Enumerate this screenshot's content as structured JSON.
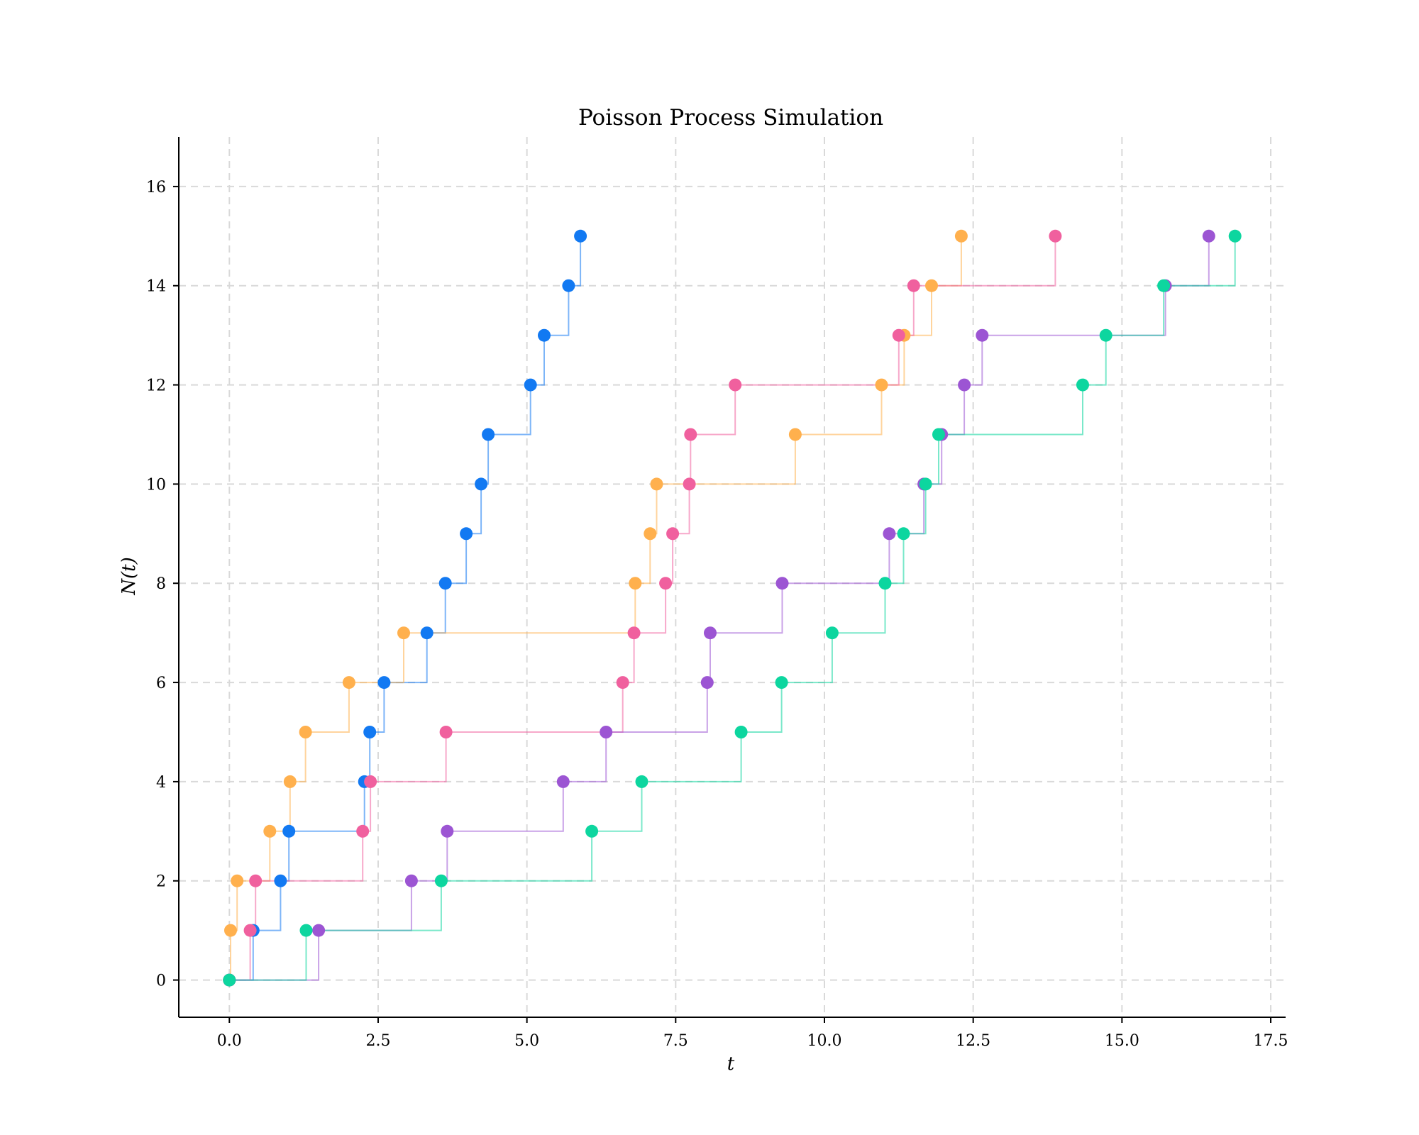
{
  "chart_data": {
    "type": "line",
    "title": "Poisson Process Simulation",
    "xlabel": "t",
    "ylabel": "N(t)",
    "xlim": [
      -0.85,
      17.75
    ],
    "ylim": [
      -0.75,
      17.0
    ],
    "x_ticks": [
      0.0,
      2.5,
      5.0,
      7.5,
      10.0,
      12.5,
      15.0,
      17.5
    ],
    "x_tick_labels": [
      "0.0",
      "2.5",
      "5.0",
      "7.5",
      "10.0",
      "12.5",
      "15.0",
      "17.5"
    ],
    "y_ticks": [
      0,
      2,
      4,
      6,
      8,
      10,
      12,
      14,
      16
    ],
    "y_tick_labels": [
      "0",
      "2",
      "4",
      "6",
      "8",
      "10",
      "12",
      "14",
      "16"
    ],
    "grid": true,
    "legend": "none",
    "series": [
      {
        "color": "#1279F2",
        "arrival_times": [
          0.0,
          0.4,
          0.86,
          1.0,
          2.27,
          2.36,
          2.6,
          3.32,
          3.63,
          3.98,
          4.23,
          4.35,
          5.06,
          5.29,
          5.7,
          5.9
        ],
        "counts": [
          0,
          1,
          2,
          3,
          4,
          5,
          6,
          7,
          8,
          9,
          10,
          11,
          12,
          13,
          14,
          15
        ]
      },
      {
        "color": "#FFB04D",
        "arrival_times": [
          0.0,
          0.02,
          0.13,
          0.68,
          1.02,
          1.28,
          2.01,
          2.93,
          6.82,
          7.07,
          7.18,
          9.51,
          10.96,
          11.34,
          11.8,
          12.3
        ],
        "counts": [
          0,
          1,
          2,
          3,
          4,
          5,
          6,
          7,
          8,
          9,
          10,
          11,
          12,
          13,
          14,
          15
        ]
      },
      {
        "color": "#F0609E",
        "arrival_times": [
          0.0,
          0.35,
          0.44,
          2.24,
          2.37,
          3.64,
          6.61,
          6.8,
          7.33,
          7.45,
          7.73,
          7.75,
          8.5,
          11.25,
          11.5,
          13.88
        ],
        "counts": [
          0,
          1,
          2,
          3,
          4,
          5,
          6,
          7,
          8,
          9,
          10,
          11,
          12,
          13,
          14,
          15
        ]
      },
      {
        "color": "#9C55D3",
        "arrival_times": [
          0.0,
          1.5,
          3.06,
          3.66,
          5.61,
          6.33,
          8.03,
          8.08,
          9.29,
          11.09,
          11.67,
          11.97,
          12.35,
          12.65,
          15.73,
          16.46
        ],
        "counts": [
          0,
          1,
          2,
          3,
          4,
          5,
          6,
          7,
          8,
          9,
          10,
          11,
          12,
          13,
          14,
          15
        ]
      },
      {
        "color": "#0DD69F",
        "arrival_times": [
          0.0,
          1.29,
          3.56,
          6.09,
          6.93,
          8.6,
          9.28,
          10.13,
          11.02,
          11.33,
          11.7,
          11.92,
          14.34,
          14.73,
          15.7,
          16.9
        ],
        "counts": [
          0,
          1,
          2,
          3,
          4,
          5,
          6,
          7,
          8,
          9,
          10,
          11,
          12,
          13,
          14,
          15
        ]
      }
    ]
  }
}
